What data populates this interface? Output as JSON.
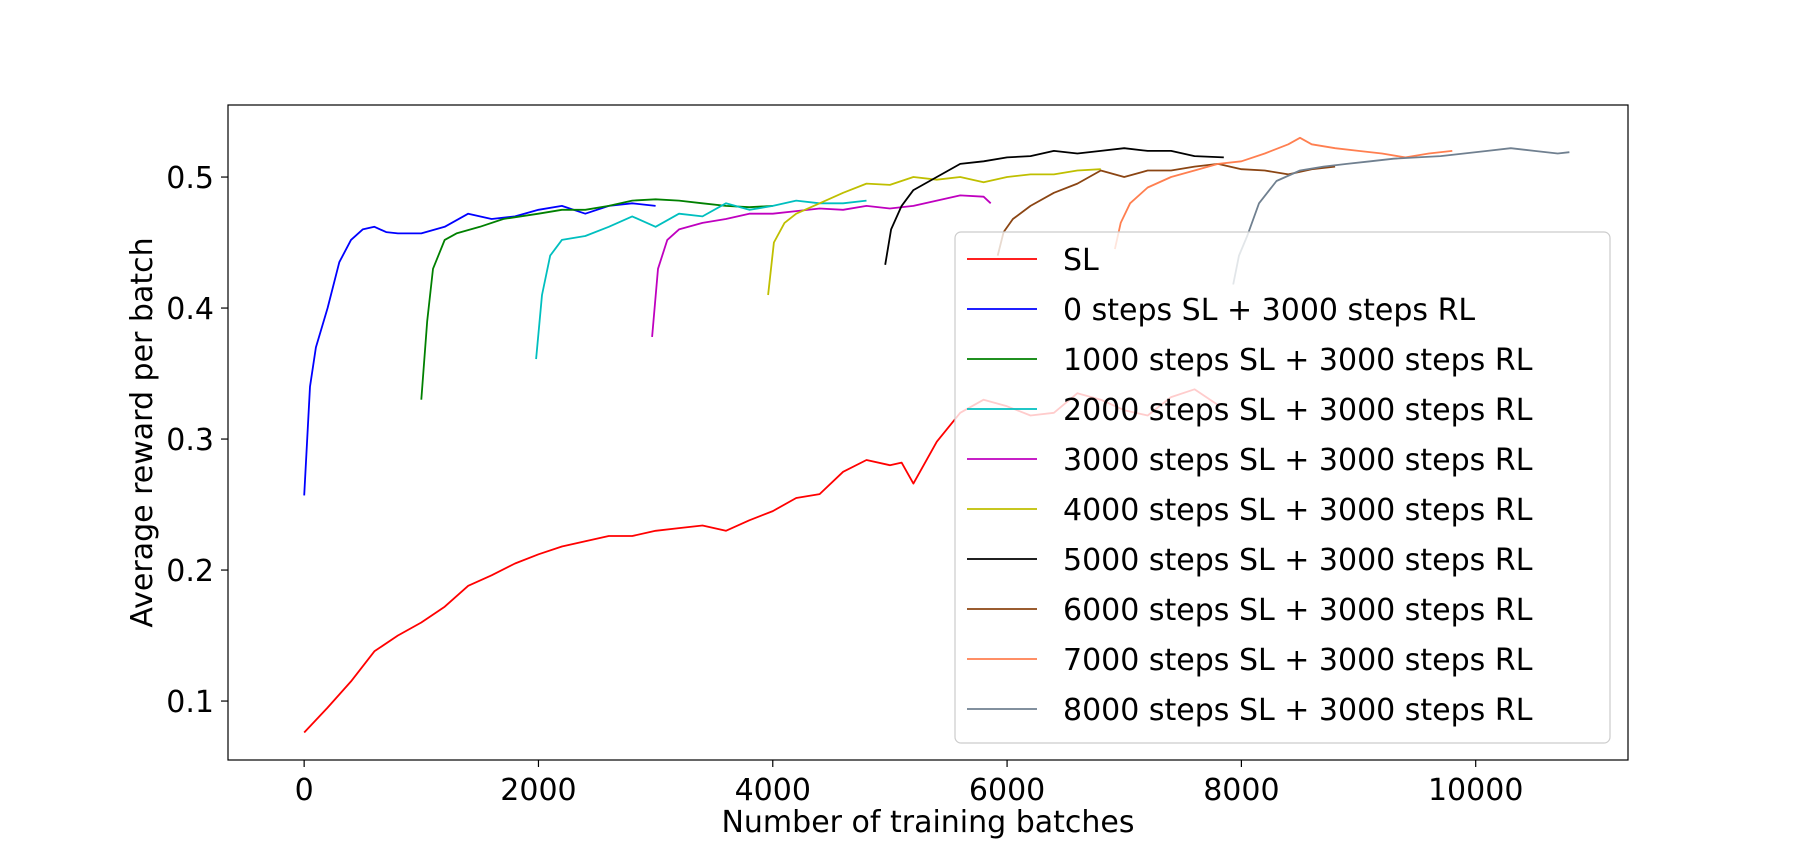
{
  "chart_data": {
    "type": "line",
    "title": "",
    "xlabel": "Number of training batches",
    "ylabel": "Average reward per batch",
    "xlim": [
      -650,
      11300
    ],
    "ylim": [
      0.055,
      0.555
    ],
    "xticks": [
      0,
      2000,
      4000,
      6000,
      8000,
      10000
    ],
    "xtick_labels": [
      "0",
      "2000",
      "4000",
      "6000",
      "8000",
      "10000"
    ],
    "yticks": [
      0.1,
      0.2,
      0.3,
      0.4,
      0.5
    ],
    "ytick_labels": [
      "0.1",
      "0.2",
      "0.3",
      "0.4",
      "0.5"
    ],
    "grid": false,
    "legend_position": "right",
    "series": [
      {
        "name": "SL",
        "color": "#ff0000",
        "x": [
          0,
          200,
          400,
          600,
          800,
          1000,
          1200,
          1400,
          1600,
          1800,
          2000,
          2200,
          2400,
          2600,
          2800,
          3000,
          3200,
          3400,
          3600,
          3800,
          4000,
          4200,
          4400,
          4600,
          4800,
          5000,
          5100,
          5200,
          5400,
          5600,
          5800,
          6000,
          6200,
          6400,
          6600,
          6800,
          7000,
          7200,
          7400,
          7600,
          7800
        ],
        "y": [
          0.076,
          0.095,
          0.115,
          0.138,
          0.15,
          0.16,
          0.172,
          0.188,
          0.196,
          0.205,
          0.212,
          0.218,
          0.222,
          0.226,
          0.226,
          0.23,
          0.232,
          0.234,
          0.23,
          0.238,
          0.245,
          0.255,
          0.258,
          0.275,
          0.284,
          0.28,
          0.282,
          0.266,
          0.298,
          0.32,
          0.33,
          0.325,
          0.318,
          0.32,
          0.335,
          0.33,
          0.322,
          0.318,
          0.332,
          0.338,
          0.326
        ]
      },
      {
        "name": "0 steps SL + 3000 steps RL",
        "color": "#0000ff",
        "x": [
          0,
          50,
          100,
          200,
          300,
          400,
          500,
          600,
          700,
          800,
          1000,
          1200,
          1400,
          1600,
          1800,
          2000,
          2200,
          2400,
          2600,
          2800,
          3000
        ],
        "y": [
          0.257,
          0.34,
          0.37,
          0.4,
          0.435,
          0.452,
          0.46,
          0.462,
          0.458,
          0.457,
          0.457,
          0.462,
          0.472,
          0.468,
          0.47,
          0.475,
          0.478,
          0.472,
          0.478,
          0.48,
          0.478
        ]
      },
      {
        "name": "1000 steps SL + 3000 steps RL",
        "color": "#008000",
        "x": [
          1000,
          1050,
          1100,
          1200,
          1300,
          1500,
          1700,
          2000,
          2200,
          2400,
          2600,
          2800,
          3000,
          3200,
          3400,
          3600,
          3800,
          4000
        ],
        "y": [
          0.33,
          0.39,
          0.43,
          0.452,
          0.457,
          0.462,
          0.468,
          0.472,
          0.475,
          0.475,
          0.478,
          0.482,
          0.483,
          0.482,
          0.48,
          0.478,
          0.477,
          0.478
        ]
      },
      {
        "name": "2000 steps SL + 3000 steps RL",
        "color": "#00bfbf",
        "x": [
          1980,
          2030,
          2100,
          2200,
          2400,
          2600,
          2800,
          3000,
          3200,
          3400,
          3600,
          3800,
          4000,
          4200,
          4400,
          4600,
          4800
        ],
        "y": [
          0.361,
          0.41,
          0.44,
          0.452,
          0.455,
          0.462,
          0.47,
          0.462,
          0.472,
          0.47,
          0.48,
          0.475,
          0.478,
          0.482,
          0.48,
          0.48,
          0.482
        ]
      },
      {
        "name": "3000 steps SL + 3000 steps RL",
        "color": "#bf00bf",
        "x": [
          2970,
          3020,
          3100,
          3200,
          3400,
          3600,
          3800,
          4000,
          4200,
          4400,
          4600,
          4800,
          5000,
          5200,
          5400,
          5600,
          5800,
          5860
        ],
        "y": [
          0.378,
          0.43,
          0.452,
          0.46,
          0.465,
          0.468,
          0.472,
          0.472,
          0.474,
          0.476,
          0.475,
          0.478,
          0.476,
          0.478,
          0.482,
          0.486,
          0.485,
          0.48
        ]
      },
      {
        "name": "4000 steps SL + 3000 steps RL",
        "color": "#bfbf00",
        "x": [
          3960,
          4010,
          4100,
          4200,
          4400,
          4600,
          4800,
          5000,
          5200,
          5400,
          5600,
          5800,
          6000,
          6200,
          6400,
          6600,
          6800
        ],
        "y": [
          0.41,
          0.45,
          0.465,
          0.472,
          0.48,
          0.488,
          0.495,
          0.494,
          0.5,
          0.498,
          0.5,
          0.496,
          0.5,
          0.502,
          0.502,
          0.505,
          0.506
        ]
      },
      {
        "name": "5000 steps SL + 3000 steps RL",
        "color": "#000000",
        "x": [
          4960,
          5010,
          5100,
          5200,
          5400,
          5600,
          5800,
          6000,
          6200,
          6400,
          6600,
          6800,
          7000,
          7200,
          7400,
          7600,
          7850
        ],
        "y": [
          0.433,
          0.46,
          0.478,
          0.49,
          0.5,
          0.51,
          0.512,
          0.515,
          0.516,
          0.52,
          0.518,
          0.52,
          0.522,
          0.52,
          0.52,
          0.516,
          0.515
        ]
      },
      {
        "name": "6000 steps SL + 3000 steps RL",
        "color": "#8b4513",
        "x": [
          5920,
          5970,
          6050,
          6200,
          6400,
          6600,
          6800,
          7000,
          7200,
          7400,
          7600,
          7800,
          8000,
          8200,
          8400,
          8600,
          8800
        ],
        "y": [
          0.44,
          0.458,
          0.468,
          0.478,
          0.488,
          0.495,
          0.505,
          0.5,
          0.505,
          0.505,
          0.508,
          0.51,
          0.506,
          0.505,
          0.502,
          0.506,
          0.508
        ]
      },
      {
        "name": "7000 steps SL + 3000 steps RL",
        "color": "#ff7f50",
        "x": [
          6920,
          6970,
          7050,
          7200,
          7400,
          7600,
          7800,
          8000,
          8200,
          8400,
          8500,
          8600,
          8800,
          9000,
          9200,
          9400,
          9600,
          9800
        ],
        "y": [
          0.445,
          0.465,
          0.48,
          0.492,
          0.5,
          0.505,
          0.51,
          0.512,
          0.518,
          0.525,
          0.53,
          0.525,
          0.522,
          0.52,
          0.518,
          0.515,
          0.518,
          0.52
        ]
      },
      {
        "name": "8000 steps SL + 3000 steps RL",
        "color": "#708090",
        "x": [
          7930,
          7980,
          8050,
          8150,
          8300,
          8500,
          8700,
          8900,
          9100,
          9300,
          9500,
          9700,
          9900,
          10100,
          10300,
          10500,
          10700,
          10800
        ],
        "y": [
          0.418,
          0.44,
          0.455,
          0.48,
          0.497,
          0.505,
          0.508,
          0.51,
          0.512,
          0.514,
          0.515,
          0.516,
          0.518,
          0.52,
          0.522,
          0.52,
          0.518,
          0.519
        ]
      }
    ]
  }
}
